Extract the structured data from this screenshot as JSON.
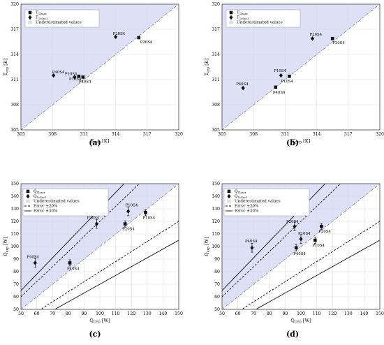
{
  "figure": {
    "colors": {
      "underestimated_fill": "#dde0f6",
      "marker": "#111111",
      "reference_line": "#777777",
      "frame": "#444444"
    },
    "panels": [
      {
        "panel_label": "(a)",
        "xlabel": "T_CFD [K]",
        "ylabel": "T_exp [K]",
        "legend_entries": [
          "T_Tlaser",
          "T_TcSec3",
          "Underestimated values"
        ]
      },
      {
        "panel_label": "(b)",
        "xlabel": "T_CFD [K]",
        "ylabel": "T_exp [K]",
        "legend_entries": [
          "T_Tlaser",
          "T_TcSec3",
          "Underestimated values"
        ]
      },
      {
        "panel_label": "(c)",
        "xlabel": "Q̇_CFD [W]",
        "ylabel": "Q̇_exp [W]",
        "legend_entries": [
          "Q̇_Tlaser",
          "Q̇_TcSec3",
          "Underestimated values",
          "Error ±20%",
          "Error ±30%"
        ]
      },
      {
        "panel_label": "(d)",
        "xlabel": "Q̇_CFD [W]",
        "ylabel": "Q̇_exp [W]",
        "legend_entries": [
          "Q̇_Tlaser",
          "Q̇_TcSec3",
          "Underestimated values",
          "Error ±20%",
          "Error ±30%"
        ]
      }
    ]
  },
  "chart_data": [
    {
      "type": "scatter",
      "xlim": [
        305,
        320
      ],
      "ylim": [
        305,
        320
      ],
      "xticks": [
        "305",
        "308",
        "311",
        "314",
        "317",
        "320"
      ],
      "yticks": [
        "305",
        "308",
        "311",
        "314",
        "317",
        "320"
      ],
      "grid": true,
      "legend_position": "top-left",
      "reference_line": "y = x",
      "underestimated_region": "above y = x",
      "series": [
        {
          "name": "T_Tlaser",
          "marker": "square",
          "points": [
            {
              "x": 316.2,
              "y": 316.0,
              "label": "P20S4"
            },
            {
              "x": 310.5,
              "y": 311.4,
              "label": "P10S4"
            },
            {
              "x": 310.9,
              "y": 311.3,
              "label": "P40S4"
            }
          ]
        },
        {
          "name": "T_TcSec3",
          "marker": "diamond",
          "points": [
            {
              "x": 314.0,
              "y": 316.1,
              "label": "P20S4"
            },
            {
              "x": 308.1,
              "y": 311.5,
              "label": "P40S4"
            },
            {
              "x": 310.1,
              "y": 311.3,
              "label": "P10S4"
            }
          ]
        }
      ]
    },
    {
      "type": "scatter",
      "xlim": [
        305,
        320
      ],
      "ylim": [
        305,
        320
      ],
      "xticks": [
        "305",
        "308",
        "311",
        "314",
        "317",
        "320"
      ],
      "yticks": [
        "305",
        "308",
        "311",
        "314",
        "317",
        "320"
      ],
      "grid": true,
      "legend_position": "top-left",
      "reference_line": "y = x",
      "underestimated_region": "above y = x",
      "series": [
        {
          "name": "T_Tlaser",
          "marker": "square",
          "points": [
            {
              "x": 315.5,
              "y": 315.9,
              "label": "P20S4"
            },
            {
              "x": 311.4,
              "y": 311.4,
              "label": "P10S4"
            },
            {
              "x": 310.1,
              "y": 310.1,
              "label": "P40S4"
            }
          ]
        },
        {
          "name": "T_TcSec3",
          "marker": "diamond",
          "points": [
            {
              "x": 313.6,
              "y": 315.9,
              "label": "P20S4"
            },
            {
              "x": 310.6,
              "y": 311.5,
              "label": "P10S4"
            },
            {
              "x": 307.0,
              "y": 310.0,
              "label": "P40S4"
            }
          ]
        }
      ]
    },
    {
      "type": "scatter",
      "xlim": [
        50,
        150
      ],
      "ylim": [
        50,
        150
      ],
      "xticks": [
        "50",
        "60",
        "70",
        "80",
        "90",
        "100",
        "110",
        "120",
        "130",
        "140",
        "150"
      ],
      "yticks": [
        "50",
        "60",
        "70",
        "80",
        "90",
        "100",
        "110",
        "120",
        "130",
        "140",
        "150"
      ],
      "grid": true,
      "legend_position": "top-right",
      "reference_line": "y = x",
      "error_bands": [
        "±20%",
        "±30%"
      ],
      "underestimated_region": "above y = x",
      "series": [
        {
          "name": "Q̇_Tlaser",
          "marker": "square",
          "points": [
            {
              "x": 129,
              "y": 127,
              "err": 2.5,
              "label": "P10S4"
            },
            {
              "x": 116,
              "y": 118,
              "err": 2.5,
              "label": "P20S4"
            },
            {
              "x": 81,
              "y": 87,
              "err": 2.5,
              "label": "P40S4"
            }
          ]
        },
        {
          "name": "Q̇_TcSec3",
          "marker": "diamond",
          "points": [
            {
              "x": 118,
              "y": 128,
              "err": 3.5,
              "label": "P10S4"
            },
            {
              "x": 98,
              "y": 118,
              "err": 3.5,
              "label": "P20S4"
            },
            {
              "x": 59,
              "y": 87,
              "err": 3.5,
              "label": "P40S4"
            }
          ]
        }
      ]
    },
    {
      "type": "scatter",
      "xlim": [
        50,
        150
      ],
      "ylim": [
        50,
        150
      ],
      "xticks": [
        "50",
        "60",
        "70",
        "80",
        "90",
        "100",
        "110",
        "120",
        "130",
        "140",
        "150"
      ],
      "yticks": [
        "50",
        "60",
        "70",
        "80",
        "90",
        "100",
        "110",
        "120",
        "130",
        "140",
        "150"
      ],
      "grid": true,
      "legend_position": "top-right",
      "reference_line": "y = x",
      "error_bands": [
        "±20%",
        "±30%"
      ],
      "underestimated_region": "above y = x",
      "series": [
        {
          "name": "Q̇_Tlaser",
          "marker": "square",
          "points": [
            {
              "x": 113,
              "y": 116,
              "err": 2.5,
              "label": "P20S4"
            },
            {
              "x": 109,
              "y": 105,
              "err": 2.5,
              "label": "P10S4"
            },
            {
              "x": 97,
              "y": 99,
              "err": 2.5,
              "label": "P40S4"
            }
          ]
        },
        {
          "name": "Q̇_TcSec3",
          "marker": "diamond",
          "points": [
            {
              "x": 96,
              "y": 116,
              "err": 3.5,
              "label": "P20S4"
            },
            {
              "x": 100,
              "y": 106,
              "err": 3.5,
              "label": "P10S4"
            },
            {
              "x": 69,
              "y": 99,
              "err": 3.5,
              "label": "P40S4"
            }
          ]
        }
      ]
    }
  ]
}
